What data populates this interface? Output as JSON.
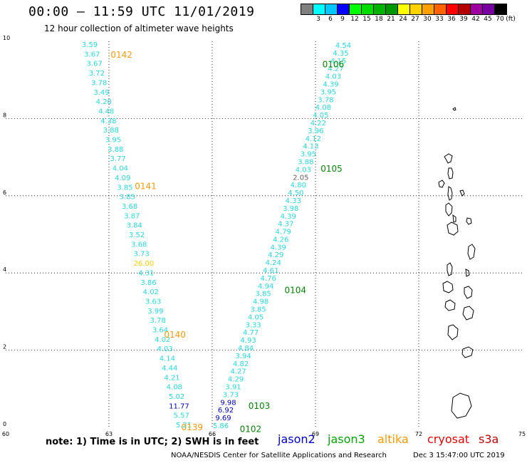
{
  "title": "00:00 – 11:59 UTC 11/01/2019",
  "subtitle": "12 hour collection of altimeter wave heights",
  "legend": {
    "unit": "(ft)",
    "bins": [
      {
        "label": "",
        "color": "#808080"
      },
      {
        "label": "3",
        "color": "#00ffff"
      },
      {
        "label": "6",
        "color": "#00c8ff"
      },
      {
        "label": "9",
        "color": "#0000ff"
      },
      {
        "label": "12",
        "color": "#00ff00"
      },
      {
        "label": "15",
        "color": "#00dc00"
      },
      {
        "label": "18",
        "color": "#00b400"
      },
      {
        "label": "21",
        "color": "#009600"
      },
      {
        "label": "24",
        "color": "#ffff00"
      },
      {
        "label": "27",
        "color": "#ffd200"
      },
      {
        "label": "30",
        "color": "#ffa000"
      },
      {
        "label": "33",
        "color": "#ff6400"
      },
      {
        "label": "36",
        "color": "#ff0000"
      },
      {
        "label": "39",
        "color": "#b40000"
      },
      {
        "label": "42",
        "color": "#a000a0"
      },
      {
        "label": "45",
        "color": "#7800a0"
      },
      {
        "label": "70",
        "color": "#000000"
      }
    ]
  },
  "map": {
    "lon_ticks": [
      "60",
      "63",
      "66",
      "69",
      "72",
      "75"
    ],
    "lat_ticks": [
      "0",
      "2",
      "4",
      "6",
      "8",
      "10"
    ],
    "lon_range": [
      60,
      75
    ],
    "lat_range": [
      0,
      10
    ]
  },
  "track_labels": [
    {
      "text": "0142",
      "lon": 63.05,
      "lat": 9.65,
      "color": "#ff9900"
    },
    {
      "text": "0141",
      "lon": 63.75,
      "lat": 6.25,
      "color": "#ff9900"
    },
    {
      "text": "0140",
      "lon": 64.6,
      "lat": 2.4,
      "color": "#ff9900"
    },
    {
      "text": "0139",
      "lon": 65.1,
      "lat": 0.0,
      "color": "#ff9900"
    },
    {
      "text": "0106",
      "lon": 69.2,
      "lat": 9.4,
      "color": "#008800"
    },
    {
      "text": "0105",
      "lon": 69.15,
      "lat": 6.7,
      "color": "#008800"
    },
    {
      "text": "0104",
      "lon": 68.1,
      "lat": 3.55,
      "color": "#008800"
    },
    {
      "text": "0103",
      "lon": 67.05,
      "lat": 0.55,
      "color": "#008800"
    },
    {
      "text": "0102",
      "lon": 66.8,
      "lat": -0.05,
      "color": "#008800"
    }
  ],
  "track_a": {
    "color": "#22dde0",
    "values": [
      "3.59",
      "3.67",
      "3.67",
      "3.72",
      "3.78",
      "3.49",
      "4.20",
      "4.48",
      "4.38",
      "3.88",
      "3.95",
      "3.88",
      "3.77",
      "4.04",
      "4.09",
      "3.85",
      "3.85",
      "3.68",
      "3.87",
      "3.84",
      "3.52",
      "3.68",
      "3.73",
      "26.00",
      "4.31",
      "3.86",
      "4.02",
      "3.63",
      "3.99",
      "3.78",
      "3.64",
      "4.02",
      "4.03",
      "4.14",
      "4.44",
      "4.21",
      "4.08",
      "5.02",
      "11.77",
      "5.57",
      "5.21"
    ],
    "colors": {
      "23": "#ffcc00",
      "38": "#0000cc"
    }
  },
  "track_b": {
    "color": "#22dde0",
    "values": [
      "4.54",
      "4.35",
      "4.15",
      "4.27",
      "4.03",
      "4.39",
      "3.95",
      "3.78",
      "4.08",
      "4.05",
      "4.22",
      "3.96",
      "4.12",
      "4.13",
      "3.95",
      "3.88",
      "4.03",
      "2.05",
      "4.80",
      "4.50",
      "4.33",
      "3.98",
      "4.39",
      "4.37",
      "4.79",
      "4.26",
      "4.39",
      "4.29",
      "4.24",
      "4.61",
      "4.76",
      "4.94",
      "3.85",
      "4.98",
      "3.85",
      "4.05",
      "3.33",
      "4.77",
      "4.93",
      "4.84",
      "3.94",
      "4.82",
      "4.27",
      "4.29",
      "3.91",
      "3.73",
      "9.98",
      "6.92",
      "9.69",
      "5.86"
    ],
    "colors": {
      "17": "#606060",
      "46": "#0000cc",
      "47": "#0000cc",
      "48": "#0000cc"
    }
  },
  "note": "note:  1) Time is in UTC;  2) SWH is in feet",
  "satellites": [
    {
      "name": "jason2",
      "color": "#0000dd"
    },
    {
      "name": "jason3",
      "color": "#00aa00"
    },
    {
      "name": "altika",
      "color": "#ff9900"
    },
    {
      "name": "cryosat",
      "color": "#ee0000"
    },
    {
      "name": "s3a",
      "color": "#cc0000"
    }
  ],
  "credit": "NOAA/NESDIS Center for Satellite Applications and Research",
  "credit_time": "Dec  3 15:47:00 UTC 2019"
}
